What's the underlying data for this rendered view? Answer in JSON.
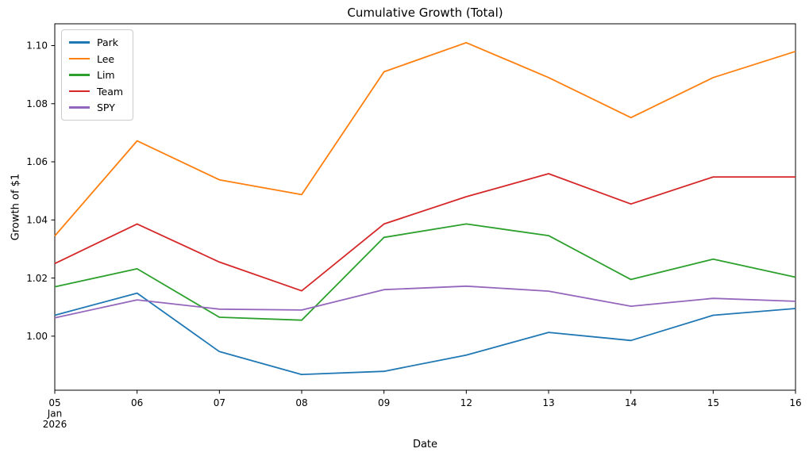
{
  "chart_data": {
    "type": "line",
    "title": "Cumulative Growth (Total)",
    "xlabel": "Date",
    "ylabel": "Growth of $1",
    "grid": false,
    "legend_position": "upper-left",
    "ylim": [
      0.9814,
      1.1075
    ],
    "y_ticks": [
      1.0,
      1.02,
      1.04,
      1.06,
      1.08,
      1.1
    ],
    "x_axis": {
      "unit": "date",
      "start_label_lines": [
        "05",
        "Jan",
        "2026"
      ],
      "categories": [
        "05",
        "06",
        "07",
        "08",
        "09",
        "12",
        "13",
        "14",
        "15",
        "16"
      ]
    },
    "x_tick_labels": [
      [
        "05",
        "Jan",
        "2026"
      ],
      [
        "06"
      ],
      [
        "07"
      ],
      [
        "08"
      ],
      [
        "09"
      ],
      [
        "12"
      ],
      [
        "13"
      ],
      [
        "14"
      ],
      [
        "15"
      ],
      [
        "16"
      ]
    ],
    "series": [
      {
        "name": "Park",
        "color": "#1f77b4",
        "values": [
          1.0072,
          1.0148,
          0.9947,
          0.9868,
          0.9879,
          0.9935,
          1.0013,
          0.9985,
          1.0072,
          1.0095
        ]
      },
      {
        "name": "Lee",
        "color": "#ff7f0e",
        "values": [
          1.0345,
          1.0672,
          1.0538,
          1.0487,
          1.091,
          1.101,
          1.089,
          1.0752,
          1.089,
          1.098
        ]
      },
      {
        "name": "Lim",
        "color": "#2ca02c",
        "values": [
          1.017,
          1.0232,
          1.0065,
          1.0055,
          1.034,
          1.0386,
          1.0346,
          1.0195,
          1.0265,
          1.0203
        ]
      },
      {
        "name": "Team",
        "color": "#d62728",
        "values": [
          1.025,
          1.0386,
          1.0255,
          1.0156,
          1.0386,
          1.048,
          1.0559,
          1.0455,
          1.0548,
          1.0548
        ]
      },
      {
        "name": "SPY",
        "color": "#9467bd",
        "values": [
          1.0063,
          1.0125,
          1.0093,
          1.009,
          1.016,
          1.0172,
          1.0155,
          1.0103,
          1.013,
          1.012
        ]
      }
    ]
  }
}
